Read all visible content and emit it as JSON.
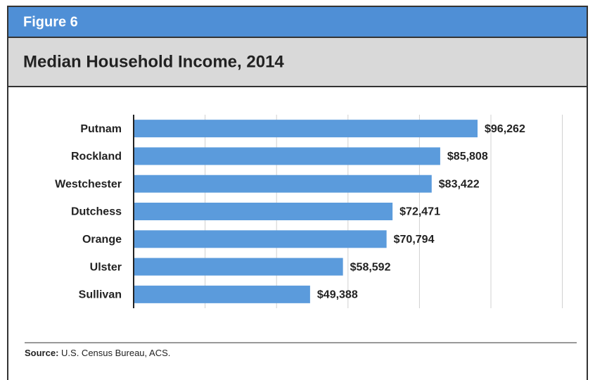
{
  "figure_label": "Figure 6",
  "chart_data": {
    "type": "barh",
    "title": "Median Household Income, 2014",
    "categories": [
      "Putnam",
      "Rockland",
      "Westchester",
      "Dutchess",
      "Orange",
      "Ulster",
      "Sullivan"
    ],
    "values": [
      96262,
      85808,
      83422,
      72471,
      70794,
      58592,
      49388
    ],
    "value_labels": [
      "$96,262",
      "$85,808",
      "$83,422",
      "$72,471",
      "$70,794",
      "$58,592",
      "$49,388"
    ],
    "color": "#5b9bdc",
    "xlim": [
      0,
      120000
    ],
    "xticks": [
      0,
      20000,
      40000,
      60000,
      80000,
      100000,
      120000
    ],
    "grid": true
  },
  "source": {
    "label": "Source:",
    "text": "U.S. Census Bureau, ACS."
  }
}
